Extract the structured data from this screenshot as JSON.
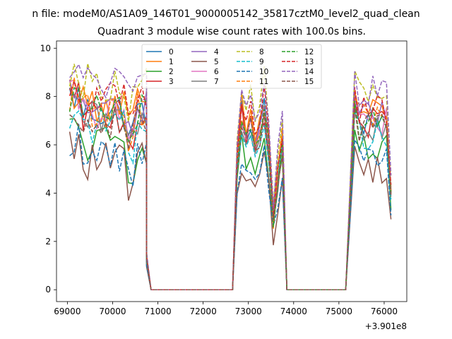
{
  "figure": {
    "suptitle": "n file: modeM0/AS1A09_146T01_9000005142_35817cztM0_level2_quad_clean"
  },
  "chart_data": {
    "type": "line",
    "title": "Quadrant 3 module wise count rates with 100.0s bins.",
    "xlabel": "",
    "ylabel": "",
    "x_offset_label": "+3.901e8",
    "xlim": [
      68760,
      76500
    ],
    "ylim": [
      -0.49,
      10.3
    ],
    "x_ticks": [
      69000,
      70000,
      71000,
      72000,
      73000,
      74000,
      75000,
      76000
    ],
    "x_tick_labels": [
      "69000",
      "70000",
      "71000",
      "72000",
      "73000",
      "74000",
      "75000",
      "76000"
    ],
    "y_ticks": [
      0,
      2,
      4,
      6,
      8,
      10
    ],
    "y_tick_labels": [
      "0",
      "2",
      "4",
      "6",
      "8",
      "10"
    ],
    "legend_placement": "upper-center",
    "legend_columns": 4,
    "series": [
      {
        "name": "0",
        "color": "#1f77b4",
        "style": "solid",
        "base": 7.4
      },
      {
        "name": "1",
        "color": "#ff7f0e",
        "style": "solid",
        "base": 7.7
      },
      {
        "name": "2",
        "color": "#2ca02c",
        "style": "solid",
        "base": 6.0
      },
      {
        "name": "3",
        "color": "#d62728",
        "style": "solid",
        "base": 7.2
      },
      {
        "name": "4",
        "color": "#9467bd",
        "style": "solid",
        "base": 7.5
      },
      {
        "name": "5",
        "color": "#8c564b",
        "style": "solid",
        "base": 5.3
      },
      {
        "name": "6",
        "color": "#e377c2",
        "style": "solid",
        "base": 7.3
      },
      {
        "name": "7",
        "color": "#7f7f7f",
        "style": "solid",
        "base": 7.0
      },
      {
        "name": "8",
        "color": "#bcbd22",
        "style": "dashed",
        "base": 8.6
      },
      {
        "name": "9",
        "color": "#17becf",
        "style": "dashed",
        "base": 6.8
      },
      {
        "name": "10",
        "color": "#1f77b4",
        "style": "dashed",
        "base": 5.6
      },
      {
        "name": "11",
        "color": "#ff7f0e",
        "style": "dashed",
        "base": 7.4
      },
      {
        "name": "12",
        "color": "#2ca02c",
        "style": "dashed",
        "base": 7.3
      },
      {
        "name": "13",
        "color": "#d62728",
        "style": "dashed",
        "base": 7.9
      },
      {
        "name": "14",
        "color": "#9467bd",
        "style": "dashed",
        "base": 8.6
      },
      {
        "name": "15",
        "color": "#8c564b",
        "style": "dashed",
        "base": 7.0
      }
    ],
    "segments": [
      {
        "start": 69050,
        "end": 70750,
        "drop_to": 70850
      },
      {
        "start": 72650,
        "end": 73950,
        "rise_from": 72650
      },
      {
        "start": 75150,
        "end": 76150
      }
    ],
    "bin_seconds": 100
  }
}
